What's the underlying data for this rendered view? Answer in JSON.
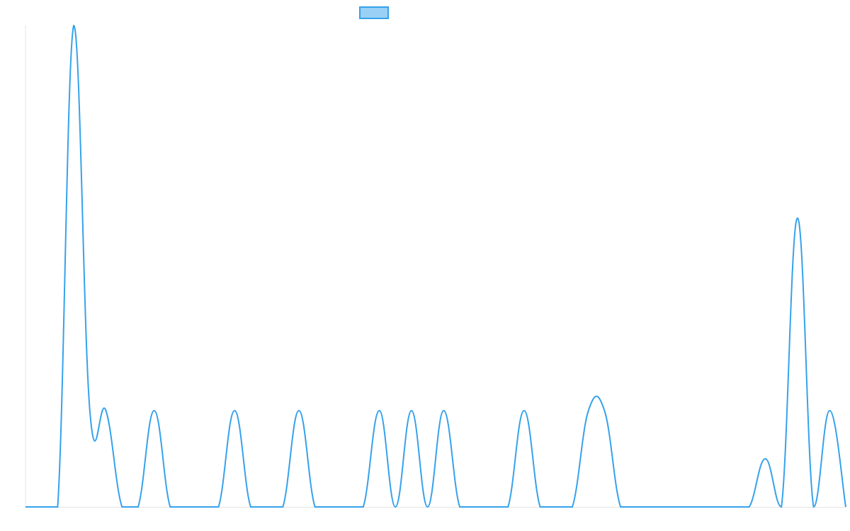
{
  "chart_data": {
    "type": "line",
    "categories": [
      null,
      null,
      null,
      null,
      null,
      null,
      null,
      null,
      null,
      null,
      null,
      null,
      null,
      null,
      null,
      null,
      null,
      null,
      null,
      null,
      null,
      null,
      null,
      null,
      null,
      null,
      null,
      null,
      null,
      null,
      null,
      null,
      null,
      null,
      null,
      null,
      null,
      null,
      null,
      null,
      null,
      null,
      null,
      null,
      null,
      null,
      null,
      null,
      null,
      null,
      null,
      null
    ],
    "series": [
      {
        "color": "#36a2eb",
        "values": [
          0,
          0,
          0,
          5,
          1,
          1,
          0,
          0,
          1,
          0,
          0,
          0,
          0,
          1,
          0,
          0,
          0,
          1,
          0,
          0,
          0,
          0,
          1,
          0,
          1,
          0,
          1,
          0,
          0,
          0,
          0,
          1,
          0,
          0,
          0,
          1,
          1,
          0,
          0,
          0,
          0,
          0,
          0,
          0,
          0,
          0,
          0.5,
          0,
          3,
          0,
          1,
          0
        ]
      }
    ],
    "ylim": [
      0,
      5
    ]
  }
}
